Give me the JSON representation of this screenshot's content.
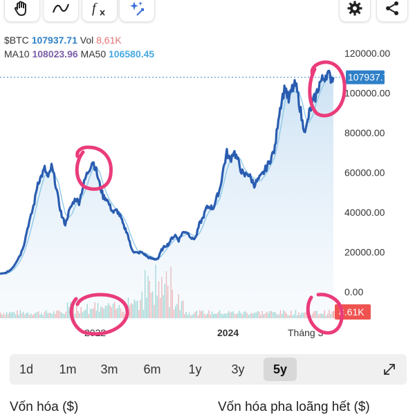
{
  "toolbar": {
    "buttons": [
      {
        "id": "draw",
        "icon": "hand-draw-icon"
      },
      {
        "id": "trend",
        "icon": "trend-line-icon"
      },
      {
        "id": "indicator",
        "icon": "fx-indicator-icon"
      },
      {
        "id": "magic",
        "icon": "sparkle-icon"
      },
      {
        "id": "settings",
        "icon": "gear-icon"
      },
      {
        "id": "share",
        "icon": "share-icon"
      }
    ],
    "fx_text": "f"
  },
  "legend": {
    "symbol": "$BTC",
    "price": "107937.71",
    "vol_label": "Vol",
    "vol_value": "8,61K",
    "ma10_label": "MA10",
    "ma10_value": "108023.96",
    "ma50_label": "MA50",
    "ma50_value": "106580.45"
  },
  "colors": {
    "price_line": "#2a5db0",
    "ma_line": "#8ec8e8",
    "area_top": "#c9e0f3",
    "ma10": "#7b5ea8",
    "ma50": "#45a8e0",
    "vol_value": "#e57373",
    "price_tag": "#2f80c8",
    "vol_tag": "#ef5350",
    "annotation": "#ea3c7a"
  },
  "chart_data": {
    "type": "line",
    "y_ticks": [
      "120000.00",
      "100000.00",
      "80000.00",
      "60000.00",
      "40000.00",
      "20000.00",
      "0.00"
    ],
    "ylim": [
      0,
      120000
    ],
    "x_ticks": [
      "2022",
      "2024",
      "Tháng 3"
    ],
    "current_price_tag": "107937.71",
    "volume_tag": "8.61K",
    "series": [
      {
        "name": "Price",
        "values": [
          9000,
          9200,
          9800,
          11000,
          13000,
          16000,
          19000,
          24000,
          32000,
          38000,
          45000,
          55000,
          58000,
          62000,
          57000,
          63000,
          56000,
          46000,
          38000,
          34000,
          40000,
          44000,
          47000,
          45000,
          52000,
          58000,
          62000,
          66000,
          61000,
          54000,
          48000,
          47000,
          43000,
          40000,
          41000,
          38000,
          33000,
          30000,
          23000,
          20000,
          19500,
          20000,
          19000,
          17500,
          16800,
          16500,
          16800,
          21000,
          23000,
          24000,
          27000,
          28500,
          26000,
          29500,
          30500,
          29000,
          26500,
          27500,
          34000,
          37000,
          42000,
          43000,
          42000,
          47000,
          52000,
          62000,
          70000,
          66000,
          71000,
          67000,
          62000,
          58000,
          60000,
          57000,
          54000,
          56000,
          58000,
          61000,
          64000,
          68000,
          72000,
          88000,
          97000,
          103000,
          96000,
          102000,
          104000,
          96000,
          85000,
          81000,
          90000,
          95000,
          99000,
          105000,
          107000,
          110000,
          108000,
          107937
        ]
      }
    ]
  },
  "ranges": [
    {
      "label": "1d",
      "active": false
    },
    {
      "label": "1m",
      "active": false
    },
    {
      "label": "3m",
      "active": false
    },
    {
      "label": "6m",
      "active": false
    },
    {
      "label": "1y",
      "active": false
    },
    {
      "label": "3y",
      "active": false
    },
    {
      "label": "5y",
      "active": true
    }
  ],
  "bottom": {
    "market_cap_label": "Vốn hóa ($)",
    "fdv_label": "Vốn hóa pha loãng hết ($)"
  }
}
